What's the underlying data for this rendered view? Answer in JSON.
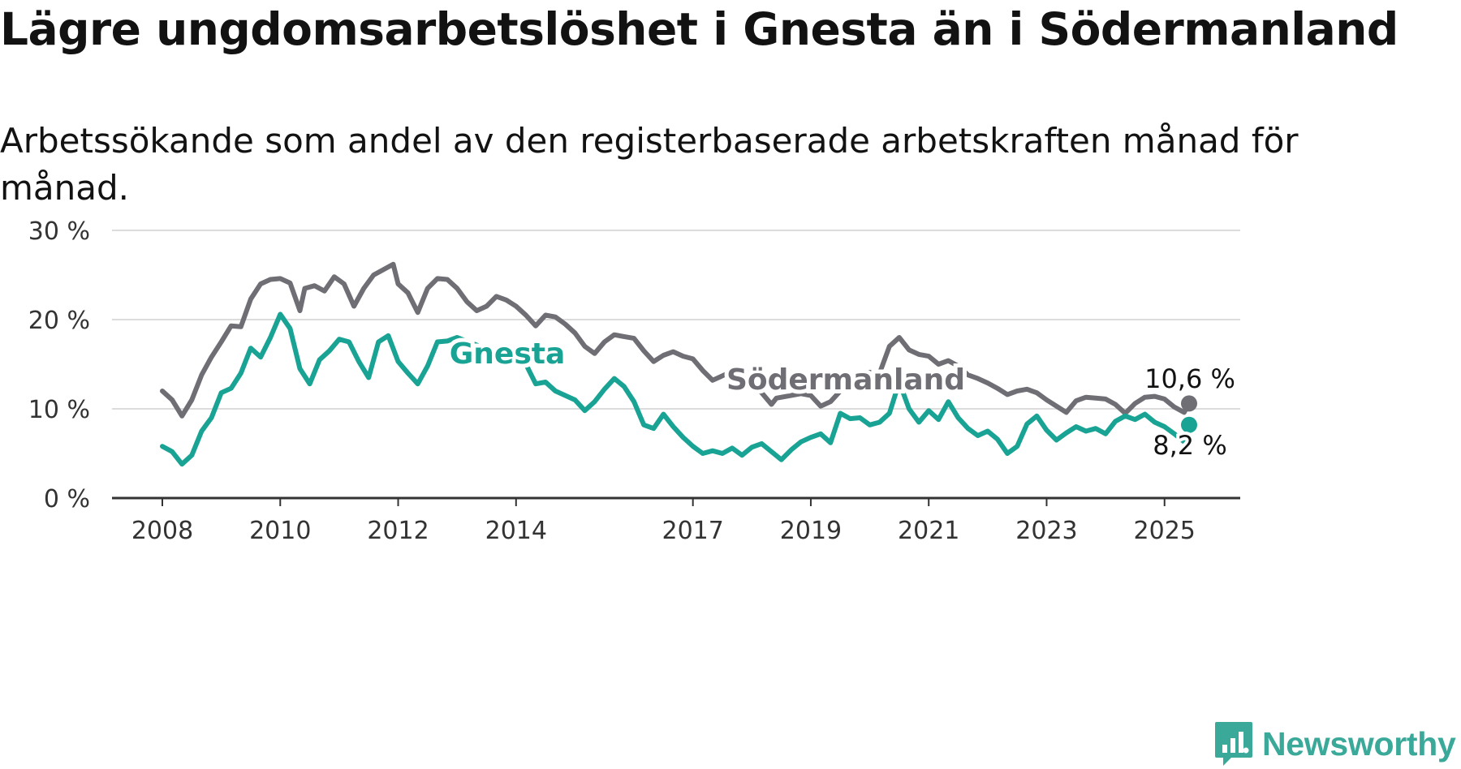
{
  "title": "Lägre ungdomsarbetslöshet i Gnesta än i Södermanland",
  "subtitle": "Arbetssökande som andel av den registerbaserade arbetskraften månad för månad.",
  "brand": {
    "name": "Newsworthy",
    "color": "#3ba99a"
  },
  "chart_data": {
    "type": "line",
    "x_start": "2008-01",
    "x_end": "2025-06",
    "xticks": [
      {
        "x": "2008-01",
        "label": "2008"
      },
      {
        "x": "2010-01",
        "label": "2010"
      },
      {
        "x": "2012-01",
        "label": "2012"
      },
      {
        "x": "2014-01",
        "label": "2014"
      },
      {
        "x": "2017-01",
        "label": "2017"
      },
      {
        "x": "2019-01",
        "label": "2019"
      },
      {
        "x": "2021-01",
        "label": "2021"
      },
      {
        "x": "2023-01",
        "label": "2023"
      },
      {
        "x": "2025-01",
        "label": "2025"
      }
    ],
    "ylim": [
      0,
      30
    ],
    "yticks": [
      {
        "value": 0,
        "label": "0 %"
      },
      {
        "value": 10,
        "label": "10 %"
      },
      {
        "value": 20,
        "label": "20 %"
      },
      {
        "value": 30,
        "label": "30 %"
      }
    ],
    "grid": true,
    "series": [
      {
        "name": "Södermanland",
        "color": "#6f6e74",
        "end_label": "10,6 %",
        "label_anchor": "2018-07",
        "points": [
          [
            "2008-01",
            12.0
          ],
          [
            "2008-03",
            11.0
          ],
          [
            "2008-05",
            9.2
          ],
          [
            "2008-07",
            11.0
          ],
          [
            "2008-09",
            13.8
          ],
          [
            "2008-11",
            15.8
          ],
          [
            "2009-01",
            17.5
          ],
          [
            "2009-03",
            19.3
          ],
          [
            "2009-05",
            19.2
          ],
          [
            "2009-07",
            22.3
          ],
          [
            "2009-09",
            24.0
          ],
          [
            "2009-11",
            24.5
          ],
          [
            "2010-01",
            24.6
          ],
          [
            "2010-03",
            24.1
          ],
          [
            "2010-05",
            21.0
          ],
          [
            "2010-06",
            23.5
          ],
          [
            "2010-08",
            23.8
          ],
          [
            "2010-10",
            23.2
          ],
          [
            "2010-12",
            24.8
          ],
          [
            "2011-02",
            24.0
          ],
          [
            "2011-04",
            21.5
          ],
          [
            "2011-06",
            23.5
          ],
          [
            "2011-08",
            25.0
          ],
          [
            "2011-10",
            25.6
          ],
          [
            "2011-12",
            26.2
          ],
          [
            "2012-01",
            24.0
          ],
          [
            "2012-03",
            23.0
          ],
          [
            "2012-05",
            20.8
          ],
          [
            "2012-07",
            23.5
          ],
          [
            "2012-09",
            24.6
          ],
          [
            "2012-11",
            24.5
          ],
          [
            "2013-01",
            23.5
          ],
          [
            "2013-03",
            22.0
          ],
          [
            "2013-05",
            21.0
          ],
          [
            "2013-07",
            21.5
          ],
          [
            "2013-09",
            22.6
          ],
          [
            "2013-11",
            22.2
          ],
          [
            "2014-01",
            21.5
          ],
          [
            "2014-03",
            20.5
          ],
          [
            "2014-05",
            19.3
          ],
          [
            "2014-07",
            20.5
          ],
          [
            "2014-09",
            20.3
          ],
          [
            "2014-11",
            19.5
          ],
          [
            "2015-01",
            18.5
          ],
          [
            "2015-03",
            17.0
          ],
          [
            "2015-05",
            16.2
          ],
          [
            "2015-07",
            17.5
          ],
          [
            "2015-09",
            18.3
          ],
          [
            "2015-11",
            18.1
          ],
          [
            "2016-01",
            17.9
          ],
          [
            "2016-03",
            16.5
          ],
          [
            "2016-05",
            15.3
          ],
          [
            "2016-07",
            16.0
          ],
          [
            "2016-09",
            16.4
          ],
          [
            "2016-11",
            15.9
          ],
          [
            "2017-01",
            15.6
          ],
          [
            "2017-03",
            14.3
          ],
          [
            "2017-05",
            13.2
          ],
          [
            "2017-07",
            13.7
          ],
          [
            "2017-09",
            14.2
          ]
        ],
        "points_tail": [
          [
            "2018-03",
            11.8
          ],
          [
            "2018-05",
            10.5
          ],
          [
            "2018-06",
            11.2
          ],
          [
            "2018-11",
            11.7
          ],
          [
            "2019-01",
            11.5
          ],
          [
            "2019-03",
            10.3
          ],
          [
            "2019-05",
            10.8
          ],
          [
            "2019-07",
            12.0
          ],
          [
            "2019-09",
            12.6
          ],
          [
            "2019-11",
            13.8
          ],
          [
            "2020-01",
            14.1
          ],
          [
            "2020-03",
            14.0
          ],
          [
            "2020-05",
            17.0
          ],
          [
            "2020-07",
            18.0
          ],
          [
            "2020-09",
            16.6
          ],
          [
            "2020-11",
            16.1
          ],
          [
            "2021-01",
            15.9
          ],
          [
            "2021-03",
            15.0
          ],
          [
            "2021-05",
            15.4
          ],
          [
            "2021-07",
            14.8
          ],
          [
            "2021-09",
            13.8
          ],
          [
            "2021-11",
            13.4
          ],
          [
            "2022-01",
            12.9
          ],
          [
            "2022-03",
            12.3
          ],
          [
            "2022-05",
            11.6
          ],
          [
            "2022-07",
            12.0
          ],
          [
            "2022-09",
            12.2
          ],
          [
            "2022-11",
            11.8
          ],
          [
            "2023-01",
            11.0
          ],
          [
            "2023-03",
            10.3
          ],
          [
            "2023-05",
            9.6
          ],
          [
            "2023-07",
            10.9
          ],
          [
            "2023-09",
            11.3
          ],
          [
            "2023-11",
            11.2
          ],
          [
            "2024-01",
            11.1
          ],
          [
            "2024-03",
            10.5
          ],
          [
            "2024-05",
            9.5
          ],
          [
            "2024-07",
            10.6
          ],
          [
            "2024-09",
            11.3
          ],
          [
            "2024-11",
            11.4
          ],
          [
            "2025-01",
            11.1
          ],
          [
            "2025-03",
            10.2
          ],
          [
            "2025-05",
            9.6
          ],
          [
            "2025-06",
            10.6
          ]
        ]
      },
      {
        "name": "Gnesta",
        "color": "#18a394",
        "end_label": "8,2 %",
        "label_anchor": "2013-10",
        "points": [
          [
            "2008-01",
            5.8
          ],
          [
            "2008-03",
            5.2
          ],
          [
            "2008-05",
            3.8
          ],
          [
            "2008-07",
            4.8
          ],
          [
            "2008-09",
            7.5
          ],
          [
            "2008-11",
            9.0
          ],
          [
            "2009-01",
            11.8
          ],
          [
            "2009-03",
            12.3
          ],
          [
            "2009-05",
            14.0
          ],
          [
            "2009-07",
            16.8
          ],
          [
            "2009-09",
            15.8
          ],
          [
            "2009-11",
            18.0
          ],
          [
            "2010-01",
            20.6
          ],
          [
            "2010-03",
            19.0
          ],
          [
            "2010-05",
            14.5
          ],
          [
            "2010-07",
            12.8
          ],
          [
            "2010-09",
            15.5
          ],
          [
            "2010-11",
            16.5
          ],
          [
            "2011-01",
            17.8
          ],
          [
            "2011-03",
            17.5
          ],
          [
            "2011-05",
            15.3
          ],
          [
            "2011-07",
            13.5
          ],
          [
            "2011-09",
            17.5
          ],
          [
            "2011-11",
            18.2
          ],
          [
            "2012-01",
            15.3
          ],
          [
            "2012-03",
            14.0
          ],
          [
            "2012-05",
            12.8
          ],
          [
            "2012-07",
            14.8
          ],
          [
            "2012-09",
            17.5
          ],
          [
            "2012-11",
            17.6
          ],
          [
            "2013-01",
            18.0
          ]
        ],
        "points_tail": [
          [
            "2014-03",
            15.0
          ],
          [
            "2014-05",
            12.8
          ],
          [
            "2014-07",
            13.0
          ],
          [
            "2014-09",
            12.0
          ],
          [
            "2014-11",
            11.5
          ],
          [
            "2015-01",
            11.0
          ],
          [
            "2015-03",
            9.8
          ],
          [
            "2015-05",
            10.8
          ],
          [
            "2015-07",
            12.2
          ],
          [
            "2015-09",
            13.4
          ],
          [
            "2015-11",
            12.5
          ],
          [
            "2016-01",
            10.8
          ],
          [
            "2016-03",
            8.2
          ],
          [
            "2016-05",
            7.8
          ],
          [
            "2016-07",
            9.4
          ],
          [
            "2016-09",
            8.0
          ],
          [
            "2016-11",
            6.8
          ],
          [
            "2017-01",
            5.8
          ],
          [
            "2017-03",
            5.0
          ],
          [
            "2017-05",
            5.3
          ],
          [
            "2017-07",
            5.0
          ],
          [
            "2017-09",
            5.6
          ],
          [
            "2017-11",
            4.8
          ],
          [
            "2018-01",
            5.7
          ],
          [
            "2018-03",
            6.1
          ],
          [
            "2018-05",
            5.2
          ],
          [
            "2018-07",
            4.3
          ],
          [
            "2018-09",
            5.4
          ],
          [
            "2018-11",
            6.3
          ],
          [
            "2019-01",
            6.8
          ],
          [
            "2019-03",
            7.2
          ],
          [
            "2019-05",
            6.2
          ],
          [
            "2019-07",
            9.5
          ],
          [
            "2019-09",
            8.9
          ],
          [
            "2019-11",
            9.0
          ],
          [
            "2020-01",
            8.2
          ],
          [
            "2020-03",
            8.5
          ],
          [
            "2020-05",
            9.5
          ],
          [
            "2020-07",
            13.0
          ],
          [
            "2020-09",
            10.0
          ],
          [
            "2020-11",
            8.5
          ],
          [
            "2021-01",
            9.8
          ],
          [
            "2021-03",
            8.8
          ],
          [
            "2021-05",
            10.8
          ],
          [
            "2021-07",
            9.0
          ],
          [
            "2021-09",
            7.8
          ],
          [
            "2021-11",
            7.0
          ],
          [
            "2022-01",
            7.5
          ],
          [
            "2022-03",
            6.6
          ],
          [
            "2022-05",
            5.0
          ],
          [
            "2022-07",
            5.8
          ],
          [
            "2022-09",
            8.3
          ],
          [
            "2022-11",
            9.2
          ],
          [
            "2023-01",
            7.6
          ],
          [
            "2023-03",
            6.5
          ],
          [
            "2023-05",
            7.3
          ],
          [
            "2023-07",
            8.0
          ],
          [
            "2023-09",
            7.5
          ],
          [
            "2023-11",
            7.8
          ],
          [
            "2024-01",
            7.2
          ],
          [
            "2024-03",
            8.6
          ],
          [
            "2024-05",
            9.2
          ],
          [
            "2024-07",
            8.8
          ],
          [
            "2024-09",
            9.4
          ],
          [
            "2024-11",
            8.5
          ],
          [
            "2025-01",
            8.0
          ],
          [
            "2025-03",
            7.2
          ],
          [
            "2025-05",
            6.3
          ],
          [
            "2025-06",
            8.2
          ]
        ]
      }
    ]
  }
}
